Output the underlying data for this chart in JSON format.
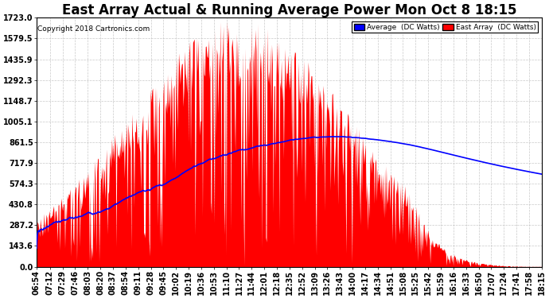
{
  "title": "East Array Actual & Running Average Power Mon Oct 8 18:15",
  "copyright": "Copyright 2018 Cartronics.com",
  "legend_avg": "Average  (DC Watts)",
  "legend_east": "East Array  (DC Watts)",
  "y_max": 1723.0,
  "y_min": 0.0,
  "y_ticks": [
    0.0,
    143.6,
    287.2,
    430.8,
    574.3,
    717.9,
    861.5,
    1005.1,
    1148.7,
    1292.3,
    1435.9,
    1579.5,
    1723.0
  ],
  "background_color": "#ffffff",
  "fill_color": "#ff0000",
  "avg_line_color": "#0000ff",
  "grid_color": "#bbbbbb",
  "title_fontsize": 12,
  "tick_fontsize": 7,
  "x_labels": [
    "06:54",
    "07:12",
    "07:29",
    "07:46",
    "08:03",
    "08:20",
    "08:37",
    "08:54",
    "09:11",
    "09:28",
    "09:45",
    "10:02",
    "10:19",
    "10:36",
    "10:53",
    "11:10",
    "11:27",
    "11:44",
    "12:01",
    "12:18",
    "12:35",
    "12:52",
    "13:09",
    "13:26",
    "13:43",
    "14:00",
    "14:17",
    "14:34",
    "14:51",
    "15:08",
    "15:25",
    "15:42",
    "15:59",
    "16:16",
    "16:33",
    "16:50",
    "17:07",
    "17:24",
    "17:41",
    "17:58",
    "18:15"
  ]
}
